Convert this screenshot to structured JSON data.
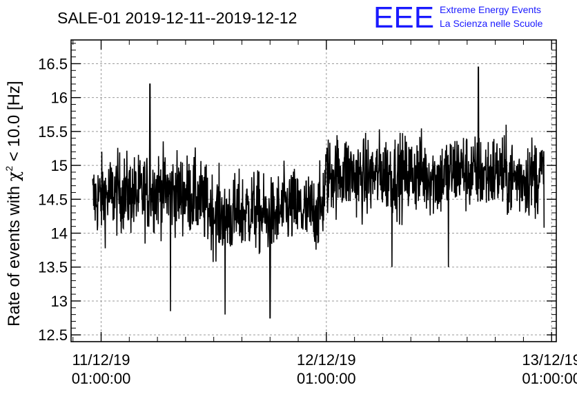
{
  "title": "SALE-01 2019-12-11--2019-12-12",
  "logo": {
    "text": "EEE",
    "line1": "Extreme Energy Events",
    "line2": "La Scienza nelle Scuole",
    "color": "#1a1aff"
  },
  "chart_data": {
    "type": "line",
    "title": "SALE-01 2019-12-11--2019-12-12",
    "ylabel_main": "Rate of events with ",
    "ylabel_chi": "χ",
    "ylabel_sup": "2",
    "ylabel_rest": " < 10.0 [Hz]",
    "ylim": [
      12.4,
      16.85
    ],
    "yticks": [
      12.5,
      13,
      13.5,
      14,
      14.5,
      15,
      15.5,
      16,
      16.5
    ],
    "ytick_labels": [
      "12.5",
      "13",
      "13.5",
      "14",
      "14.5",
      "15",
      "15.5",
      "16",
      "16.5"
    ],
    "xlim_hours": [
      -3.2,
      48.5
    ],
    "xticks": [
      {
        "hour": 0,
        "date": "11/12/19",
        "time": "01:00:00"
      },
      {
        "hour": 24,
        "date": "12/12/19",
        "time": "01:00:00"
      },
      {
        "hour": 48,
        "date": "13/12/19",
        "time": "01:00:00"
      }
    ],
    "x_start": "11/12/19 00:00:00",
    "x_end": "12/12/19 23:30:00",
    "grid": true,
    "color": "#000000",
    "trend": {
      "t_hours": [
        -0.9,
        2,
        4,
        6,
        8,
        10,
        12,
        14,
        16,
        18,
        20,
        22,
        23.5,
        24,
        26,
        28,
        30,
        32,
        34,
        36,
        38,
        40,
        42,
        44,
        46,
        47.2
      ],
      "rate": [
        14.5,
        14.6,
        14.55,
        14.65,
        14.6,
        14.55,
        14.3,
        14.25,
        14.35,
        14.2,
        14.4,
        14.3,
        14.35,
        14.85,
        14.9,
        14.8,
        14.9,
        14.85,
        14.9,
        14.8,
        14.95,
        14.85,
        14.9,
        14.8,
        14.85,
        14.85
      ]
    },
    "noise_sigma": 0.42,
    "samples": 1440,
    "extremes": [
      {
        "t": 5.2,
        "rate": 16.2
      },
      {
        "t": 7.4,
        "rate": 12.85
      },
      {
        "t": 13.2,
        "rate": 12.8
      },
      {
        "t": 18.0,
        "rate": 12.75
      },
      {
        "t": 40.2,
        "rate": 16.45
      },
      {
        "t": 31.0,
        "rate": 13.5
      },
      {
        "t": 37.0,
        "rate": 13.5
      }
    ]
  }
}
